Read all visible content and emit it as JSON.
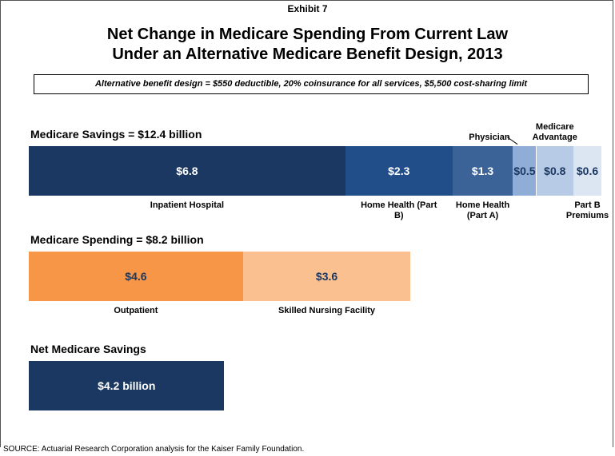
{
  "header": {
    "exhibit": "Exhibit 7",
    "title_lines": [
      "Net Change in Medicare Spending From Current Law",
      "Under an Alternative Medicare Benefit Design, 2013"
    ],
    "note": "Alternative benefit design = $550 deductible, 20% coinsurance for all services, $5,500 cost-sharing limit"
  },
  "chart_data": [
    {
      "type": "stacked_hbar",
      "title": "Medicare Savings = $12.4 billion",
      "series": [
        {
          "name": "Inpatient Hospital",
          "color": "#1b3862",
          "values": [
            6.8
          ],
          "value_labels": [
            "$6.8"
          ],
          "label_position": "below"
        },
        {
          "name": "Home Health (Part B)",
          "color": "#214e88",
          "values": [
            2.3
          ],
          "value_labels": [
            "$2.3"
          ],
          "label_position": "below"
        },
        {
          "name": "Home Health (Part A)",
          "color": "#3b6398",
          "values": [
            1.3
          ],
          "value_labels": [
            "$1.3"
          ],
          "label_position": "below"
        },
        {
          "name": "Physician",
          "color": "#8fadd6",
          "values": [
            0.5
          ],
          "value_labels": [
            "$0.5"
          ],
          "label_position": "above"
        },
        {
          "name": "Medicare Advantage",
          "color": "#b8cbe6",
          "values": [
            0.8
          ],
          "value_labels": [
            "$0.8"
          ],
          "label_position": "above"
        },
        {
          "name": "Part B Premiums",
          "color": "#dce5f2",
          "values": [
            0.6
          ],
          "value_labels": [
            "$0.6"
          ],
          "label_position": "below"
        }
      ]
    },
    {
      "type": "stacked_hbar",
      "title": "Medicare Spending = $8.2 billion",
      "series": [
        {
          "name": "Outpatient",
          "color": "#f79646",
          "values": [
            4.6
          ],
          "value_labels": [
            "$4.6"
          ],
          "label_position": "below"
        },
        {
          "name": "Skilled Nursing Facility",
          "color": "#fac08f",
          "values": [
            3.6
          ],
          "value_labels": [
            "$3.6"
          ],
          "label_position": "below"
        }
      ]
    },
    {
      "type": "stacked_hbar",
      "title": "Net Medicare Savings",
      "series": [
        {
          "color": "#1b3862",
          "values": [
            4.2
          ],
          "value_labels": [
            "$4.2 billion"
          ]
        }
      ]
    }
  ],
  "source": "SOURCE: Actuarial Research Corporation analysis for the Kaiser Family Foundation."
}
